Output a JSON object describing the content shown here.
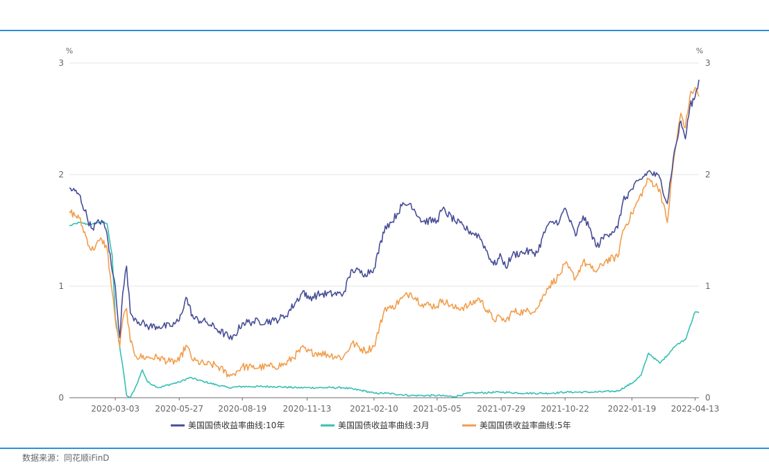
{
  "colors": {
    "rule": "#2f8fd8",
    "grid": "#e6e6e6",
    "axis": "#6b6b6b",
    "ten_year": "#464d96",
    "three_month": "#34bfb3",
    "five_year": "#f29d4b"
  },
  "chart_data": {
    "type": "line",
    "title": "",
    "y_unit_left": "%",
    "y_unit_right": "%",
    "ylim": [
      0,
      3
    ],
    "y_ticks": [
      "0",
      "1",
      "2",
      "3"
    ],
    "x_range": [
      "2020-01-02",
      "2022-04-18"
    ],
    "x_ticks": [
      "2020-03-03",
      "2020-05-27",
      "2020-08-19",
      "2020-11-13",
      "2021-02-10",
      "2021-05-05",
      "2021-07-29",
      "2021-10-22",
      "2022-01-19",
      "2022-04-13"
    ],
    "legend_position": "bottom-center",
    "series": [
      {
        "name": "美国国债收益率曲线:10年",
        "color_key": "ten_year",
        "points": [
          [
            "2020-01-02",
            1.88
          ],
          [
            "2020-01-15",
            1.82
          ],
          [
            "2020-01-31",
            1.52
          ],
          [
            "2020-02-14",
            1.59
          ],
          [
            "2020-02-21",
            1.47
          ],
          [
            "2020-02-28",
            1.13
          ],
          [
            "2020-03-03",
            1.0
          ],
          [
            "2020-03-09",
            0.54
          ],
          [
            "2020-03-13",
            0.94
          ],
          [
            "2020-03-18",
            1.18
          ],
          [
            "2020-03-23",
            0.76
          ],
          [
            "2020-03-31",
            0.7
          ],
          [
            "2020-04-15",
            0.64
          ],
          [
            "2020-04-30",
            0.64
          ],
          [
            "2020-05-15",
            0.64
          ],
          [
            "2020-05-27",
            0.69
          ],
          [
            "2020-06-05",
            0.9
          ],
          [
            "2020-06-15",
            0.71
          ],
          [
            "2020-07-01",
            0.68
          ],
          [
            "2020-07-15",
            0.62
          ],
          [
            "2020-07-31",
            0.55
          ],
          [
            "2020-08-05",
            0.52
          ],
          [
            "2020-08-19",
            0.67
          ],
          [
            "2020-09-01",
            0.68
          ],
          [
            "2020-09-30",
            0.69
          ],
          [
            "2020-10-15",
            0.73
          ],
          [
            "2020-11-09",
            0.96
          ],
          [
            "2020-11-13",
            0.89
          ],
          [
            "2020-12-01",
            0.93
          ],
          [
            "2020-12-31",
            0.93
          ],
          [
            "2021-01-12",
            1.15
          ],
          [
            "2021-01-29",
            1.11
          ],
          [
            "2021-02-10",
            1.16
          ],
          [
            "2021-02-25",
            1.54
          ],
          [
            "2021-03-05",
            1.57
          ],
          [
            "2021-03-19",
            1.72
          ],
          [
            "2021-03-31",
            1.74
          ],
          [
            "2021-04-15",
            1.58
          ],
          [
            "2021-05-05",
            1.59
          ],
          [
            "2021-05-12",
            1.69
          ],
          [
            "2021-05-28",
            1.59
          ],
          [
            "2021-06-15",
            1.5
          ],
          [
            "2021-06-30",
            1.45
          ],
          [
            "2021-07-19",
            1.19
          ],
          [
            "2021-07-29",
            1.27
          ],
          [
            "2021-08-04",
            1.17
          ],
          [
            "2021-08-13",
            1.28
          ],
          [
            "2021-08-31",
            1.31
          ],
          [
            "2021-09-15",
            1.3
          ],
          [
            "2021-09-28",
            1.54
          ],
          [
            "2021-10-15",
            1.59
          ],
          [
            "2021-10-22",
            1.7
          ],
          [
            "2021-11-05",
            1.45
          ],
          [
            "2021-11-15",
            1.63
          ],
          [
            "2021-11-26",
            1.48
          ],
          [
            "2021-12-03",
            1.35
          ],
          [
            "2021-12-15",
            1.46
          ],
          [
            "2021-12-31",
            1.52
          ],
          [
            "2022-01-07",
            1.76
          ],
          [
            "2022-01-19",
            1.87
          ],
          [
            "2022-02-10",
            2.03
          ],
          [
            "2022-02-25",
            1.97
          ],
          [
            "2022-03-07",
            1.74
          ],
          [
            "2022-03-15",
            2.15
          ],
          [
            "2022-03-25",
            2.48
          ],
          [
            "2022-03-31",
            2.32
          ],
          [
            "2022-04-06",
            2.61
          ],
          [
            "2022-04-13",
            2.7
          ],
          [
            "2022-04-18",
            2.85
          ]
        ]
      },
      {
        "name": "美国国债收益率曲线:3月",
        "color_key": "three_month",
        "points": [
          [
            "2020-01-02",
            1.54
          ],
          [
            "2020-01-15",
            1.57
          ],
          [
            "2020-01-31",
            1.55
          ],
          [
            "2020-02-14",
            1.58
          ],
          [
            "2020-02-21",
            1.56
          ],
          [
            "2020-02-28",
            1.27
          ],
          [
            "2020-03-03",
            0.72
          ],
          [
            "2020-03-09",
            0.45
          ],
          [
            "2020-03-13",
            0.28
          ],
          [
            "2020-03-18",
            0.02
          ],
          [
            "2020-03-23",
            0.0
          ],
          [
            "2020-03-31",
            0.11
          ],
          [
            "2020-04-08",
            0.25
          ],
          [
            "2020-04-15",
            0.14
          ],
          [
            "2020-04-30",
            0.09
          ],
          [
            "2020-05-15",
            0.12
          ],
          [
            "2020-05-27",
            0.14
          ],
          [
            "2020-06-10",
            0.18
          ],
          [
            "2020-07-01",
            0.14
          ],
          [
            "2020-07-31",
            0.09
          ],
          [
            "2020-08-19",
            0.1
          ],
          [
            "2020-09-30",
            0.1
          ],
          [
            "2020-10-30",
            0.09
          ],
          [
            "2020-11-13",
            0.09
          ],
          [
            "2020-12-31",
            0.09
          ],
          [
            "2021-01-29",
            0.06
          ],
          [
            "2021-02-10",
            0.04
          ],
          [
            "2021-02-26",
            0.04
          ],
          [
            "2021-03-31",
            0.02
          ],
          [
            "2021-04-15",
            0.02
          ],
          [
            "2021-05-05",
            0.02
          ],
          [
            "2021-05-28",
            0.01
          ],
          [
            "2021-06-15",
            0.04
          ],
          [
            "2021-07-29",
            0.05
          ],
          [
            "2021-08-31",
            0.04
          ],
          [
            "2021-09-30",
            0.04
          ],
          [
            "2021-10-22",
            0.05
          ],
          [
            "2021-11-30",
            0.05
          ],
          [
            "2021-12-31",
            0.06
          ],
          [
            "2022-01-19",
            0.13
          ],
          [
            "2022-01-31",
            0.2
          ],
          [
            "2022-02-10",
            0.4
          ],
          [
            "2022-02-25",
            0.31
          ],
          [
            "2022-03-07",
            0.38
          ],
          [
            "2022-03-15",
            0.45
          ],
          [
            "2022-03-25",
            0.5
          ],
          [
            "2022-03-31",
            0.52
          ],
          [
            "2022-04-06",
            0.64
          ],
          [
            "2022-04-13",
            0.77
          ],
          [
            "2022-04-18",
            0.76
          ]
        ]
      },
      {
        "name": "美国国债收益率曲线:5年",
        "color_key": "five_year",
        "points": [
          [
            "2020-01-02",
            1.67
          ],
          [
            "2020-01-15",
            1.61
          ],
          [
            "2020-01-31",
            1.32
          ],
          [
            "2020-02-14",
            1.42
          ],
          [
            "2020-02-21",
            1.34
          ],
          [
            "2020-02-28",
            0.94
          ],
          [
            "2020-03-03",
            0.7
          ],
          [
            "2020-03-09",
            0.46
          ],
          [
            "2020-03-13",
            0.7
          ],
          [
            "2020-03-18",
            0.8
          ],
          [
            "2020-03-23",
            0.5
          ],
          [
            "2020-03-31",
            0.37
          ],
          [
            "2020-04-15",
            0.36
          ],
          [
            "2020-04-30",
            0.36
          ],
          [
            "2020-05-15",
            0.32
          ],
          [
            "2020-05-27",
            0.33
          ],
          [
            "2020-06-05",
            0.47
          ],
          [
            "2020-06-15",
            0.33
          ],
          [
            "2020-07-01",
            0.3
          ],
          [
            "2020-07-15",
            0.29
          ],
          [
            "2020-07-31",
            0.21
          ],
          [
            "2020-08-05",
            0.2
          ],
          [
            "2020-08-19",
            0.28
          ],
          [
            "2020-09-01",
            0.27
          ],
          [
            "2020-09-30",
            0.28
          ],
          [
            "2020-10-15",
            0.3
          ],
          [
            "2020-11-09",
            0.45
          ],
          [
            "2020-11-13",
            0.41
          ],
          [
            "2020-12-01",
            0.4
          ],
          [
            "2020-12-31",
            0.36
          ],
          [
            "2021-01-12",
            0.49
          ],
          [
            "2021-01-29",
            0.42
          ],
          [
            "2021-02-10",
            0.46
          ],
          [
            "2021-02-25",
            0.81
          ],
          [
            "2021-03-05",
            0.8
          ],
          [
            "2021-03-19",
            0.89
          ],
          [
            "2021-03-31",
            0.94
          ],
          [
            "2021-04-15",
            0.84
          ],
          [
            "2021-05-05",
            0.82
          ],
          [
            "2021-05-12",
            0.88
          ],
          [
            "2021-05-28",
            0.8
          ],
          [
            "2021-06-15",
            0.82
          ],
          [
            "2021-06-30",
            0.89
          ],
          [
            "2021-07-19",
            0.7
          ],
          [
            "2021-07-29",
            0.72
          ],
          [
            "2021-08-04",
            0.68
          ],
          [
            "2021-08-13",
            0.77
          ],
          [
            "2021-08-31",
            0.77
          ],
          [
            "2021-09-15",
            0.8
          ],
          [
            "2021-09-28",
            0.98
          ],
          [
            "2021-10-15",
            1.1
          ],
          [
            "2021-10-22",
            1.2
          ],
          [
            "2021-11-05",
            1.07
          ],
          [
            "2021-11-15",
            1.22
          ],
          [
            "2021-11-26",
            1.16
          ],
          [
            "2021-12-03",
            1.13
          ],
          [
            "2021-12-15",
            1.23
          ],
          [
            "2021-12-31",
            1.26
          ],
          [
            "2022-01-07",
            1.5
          ],
          [
            "2022-01-19",
            1.65
          ],
          [
            "2022-02-10",
            1.96
          ],
          [
            "2022-02-25",
            1.87
          ],
          [
            "2022-03-07",
            1.57
          ],
          [
            "2022-03-15",
            2.11
          ],
          [
            "2022-03-25",
            2.55
          ],
          [
            "2022-03-31",
            2.42
          ],
          [
            "2022-04-06",
            2.7
          ],
          [
            "2022-04-13",
            2.78
          ],
          [
            "2022-04-18",
            2.7
          ]
        ]
      }
    ]
  },
  "footer": {
    "source": "数据来源：同花顺iFinD"
  }
}
